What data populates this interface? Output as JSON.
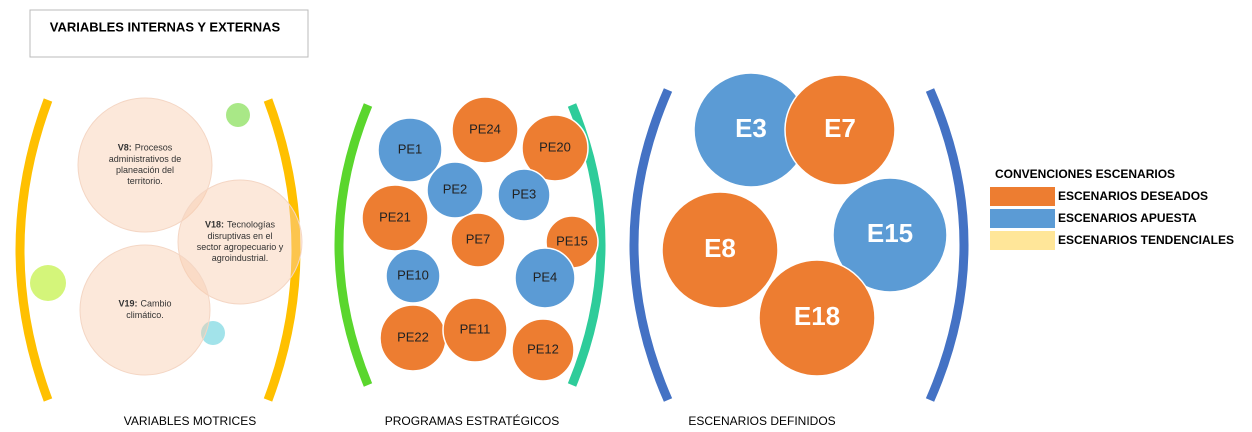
{
  "header": {
    "title": "VARIABLES INTERNAS Y EXTERNAS"
  },
  "variables": [
    {
      "code": "V8:",
      "lines": [
        "Procesos",
        "administrativos de",
        "planeación del",
        "territorio."
      ]
    },
    {
      "code": "V18:",
      "lines": [
        "Tecnologías",
        "disruptivas en el",
        "sector agropecuario y",
        "agroindustrial."
      ]
    },
    {
      "code": "V19:",
      "lines": [
        "Cambio",
        "climático."
      ]
    }
  ],
  "programs": [
    {
      "label": "PE1",
      "color": "#5b9bd5"
    },
    {
      "label": "PE24",
      "color": "#ed7d31"
    },
    {
      "label": "PE20",
      "color": "#ed7d31"
    },
    {
      "label": "PE2",
      "color": "#5b9bd5"
    },
    {
      "label": "PE3",
      "color": "#5b9bd5"
    },
    {
      "label": "PE21",
      "color": "#ed7d31"
    },
    {
      "label": "PE7",
      "color": "#ed7d31"
    },
    {
      "label": "PE15",
      "color": "#ed7d31"
    },
    {
      "label": "PE10",
      "color": "#5b9bd5"
    },
    {
      "label": "PE4",
      "color": "#5b9bd5"
    },
    {
      "label": "PE22",
      "color": "#ed7d31"
    },
    {
      "label": "PE11",
      "color": "#ed7d31"
    },
    {
      "label": "PE12",
      "color": "#ed7d31"
    }
  ],
  "scenarios": [
    {
      "label": "E3",
      "color": "#5b9bd5"
    },
    {
      "label": "E7",
      "color": "#ed7d31"
    },
    {
      "label": "E8",
      "color": "#ed7d31"
    },
    {
      "label": "E15",
      "color": "#5b9bd5"
    },
    {
      "label": "E18",
      "color": "#ed7d31"
    }
  ],
  "legend": {
    "title": "CONVENCIONES ESCENARIOS",
    "items": [
      {
        "label": "ESCENARIOS DESEADOS",
        "color": "#ed7d31"
      },
      {
        "label": "ESCENARIOS APUESTA",
        "color": "#5b9bd5"
      },
      {
        "label": "ESCENARIOS TENDENCIALES",
        "color": "#ffe699"
      }
    ]
  },
  "sections": [
    "VARIABLES MOTRICES",
    "PROGRAMAS ESTRATÉGICOS",
    "ESCENARIOS DEFINIDOS"
  ]
}
